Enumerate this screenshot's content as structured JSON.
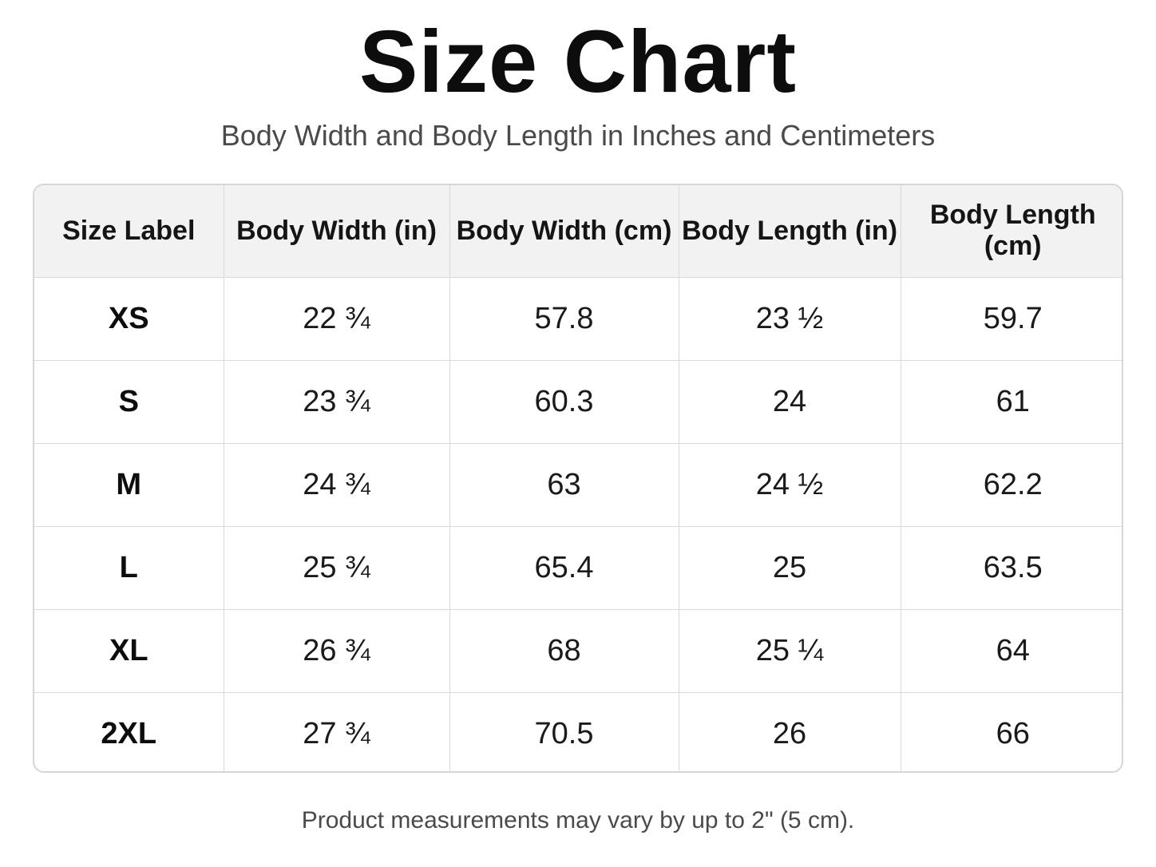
{
  "title": "Size Chart",
  "subtitle": "Body Width and Body Length in Inches and Centimeters",
  "table": {
    "headers": [
      "Size Label",
      "Body Width (in)",
      "Body Width (cm)",
      "Body Length (in)",
      "Body Length (cm)"
    ],
    "rows": [
      [
        "XS",
        "22 ¾",
        "57.8",
        "23 ½",
        "59.7"
      ],
      [
        "S",
        "23 ¾",
        "60.3",
        "24",
        "61"
      ],
      [
        "M",
        "24 ¾",
        "63",
        "24 ½",
        "62.2"
      ],
      [
        "L",
        "25 ¾",
        "65.4",
        "25",
        "63.5"
      ],
      [
        "XL",
        "26 ¾",
        "68",
        "25 ¼",
        "64"
      ],
      [
        "2XL",
        "27 ¾",
        "70.5",
        "26",
        "66"
      ]
    ]
  },
  "footnote": "Product measurements may vary by up to 2\" (5 cm)."
}
